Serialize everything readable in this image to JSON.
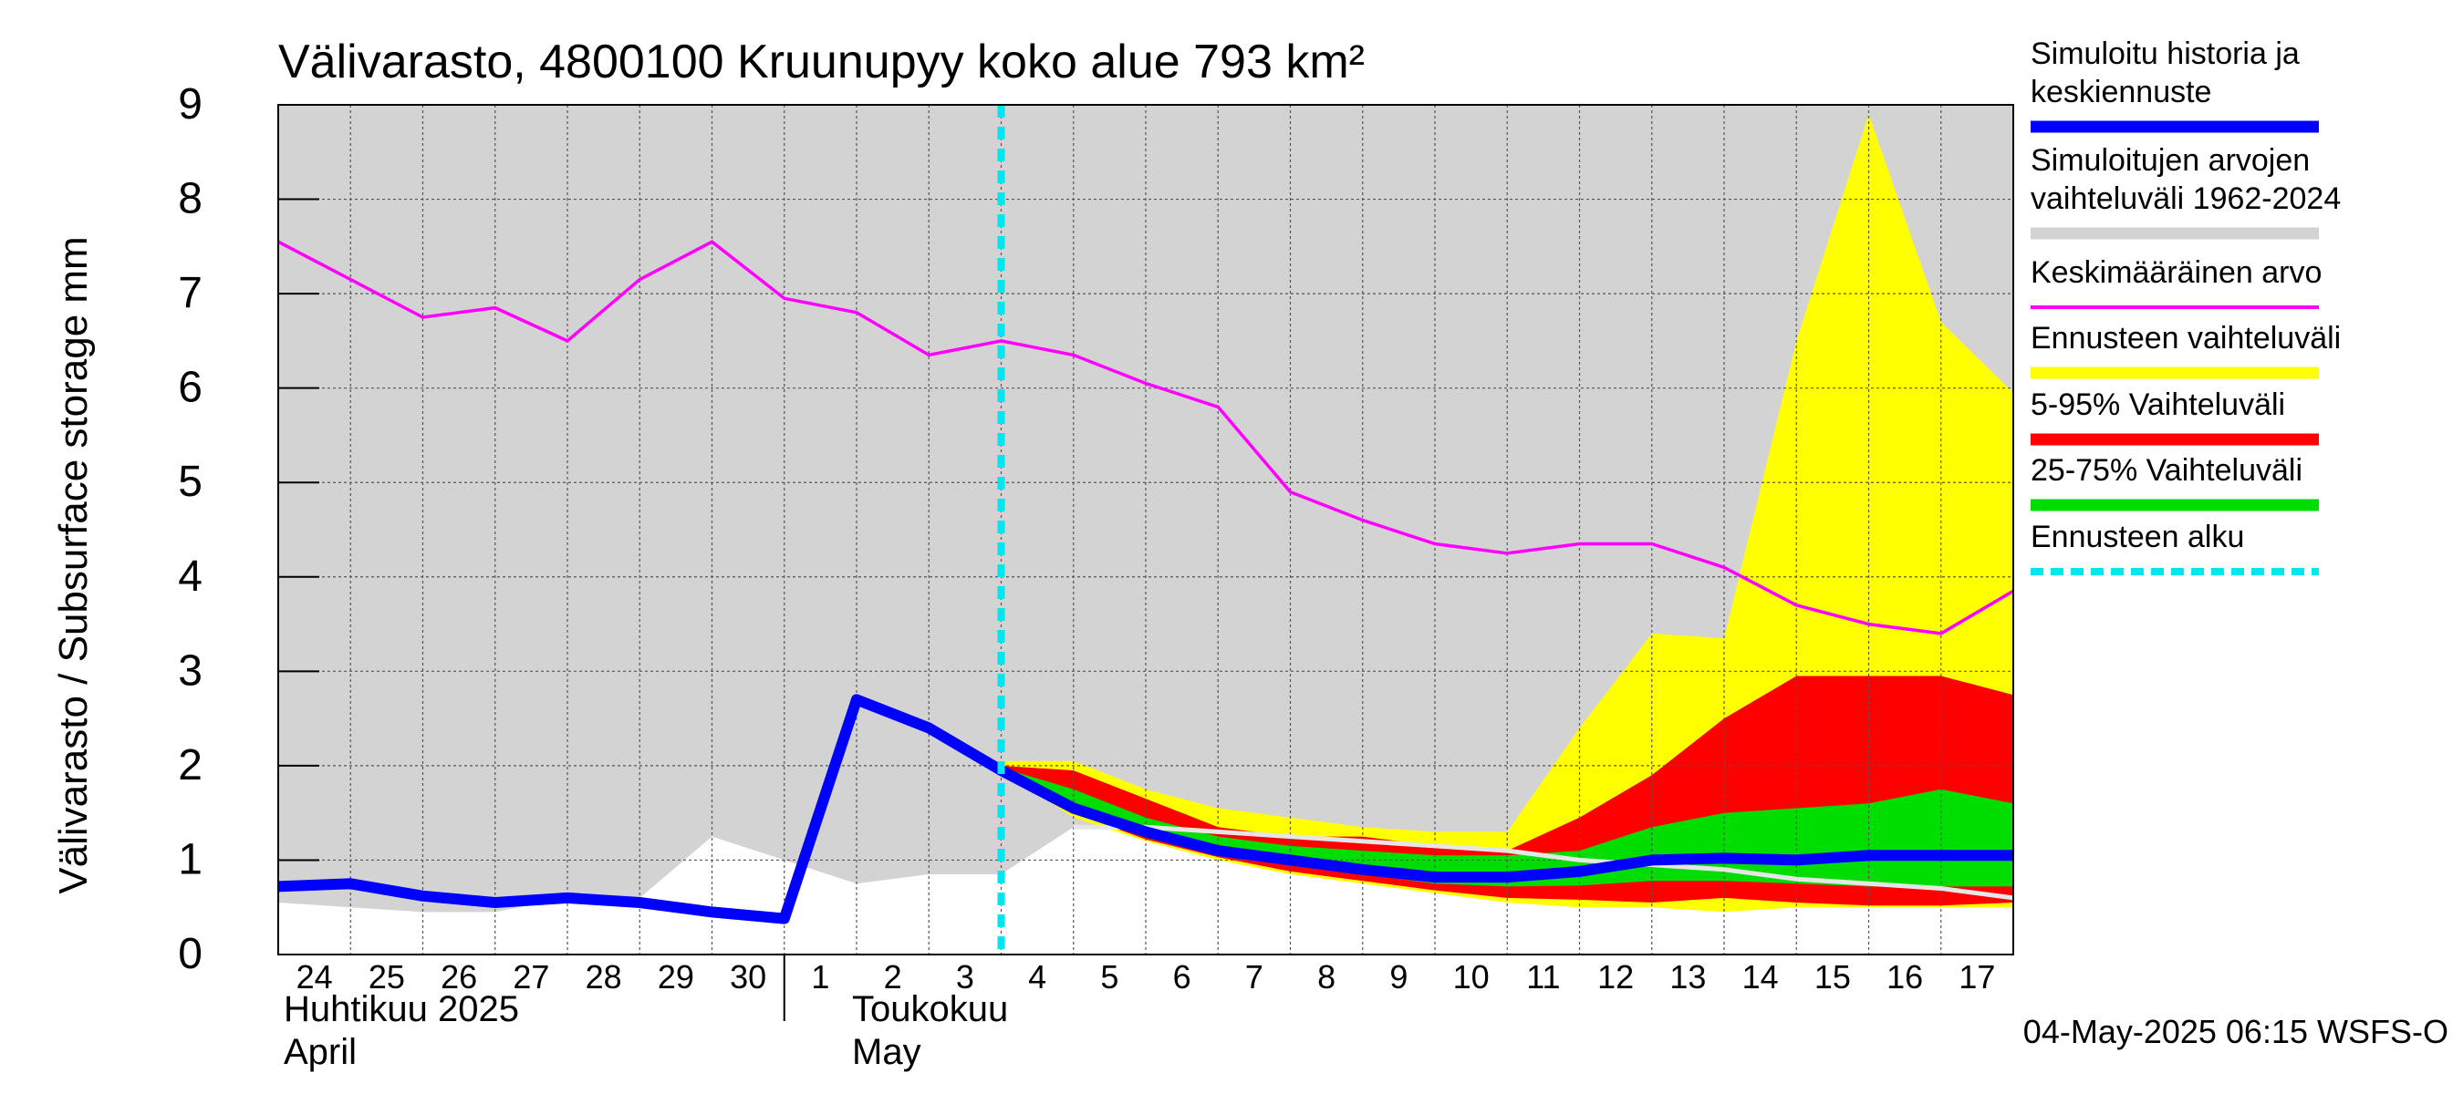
{
  "chart_data": {
    "type": "area",
    "title": "Välivarasto, 4800100 Kruunupyy koko alue 793 km²",
    "ylabel": "Välivarasto / Subsurface storage  mm",
    "ylim": [
      0,
      9
    ],
    "yticks": [
      "0",
      "1",
      "2",
      "3",
      "4",
      "5",
      "6",
      "7",
      "8",
      "9"
    ],
    "grid": true,
    "legend_position": "right",
    "x_day_labels": [
      "24",
      "25",
      "26",
      "27",
      "28",
      "29",
      "30",
      "1",
      "2",
      "3",
      "4",
      "5",
      "6",
      "7",
      "8",
      "9",
      "10",
      "11",
      "12",
      "13",
      "14",
      "15",
      "16",
      "17"
    ],
    "month_labels": [
      {
        "fi": "Huhtikuu  2025",
        "en": "April"
      },
      {
        "fi": "Toukokuu",
        "en": "May"
      }
    ],
    "footer": "04-May-2025 06:15 WSFS-O",
    "forecast_start": "2025-05-04",
    "x": [
      "2025-04-24",
      "2025-04-25",
      "2025-04-26",
      "2025-04-27",
      "2025-04-28",
      "2025-04-29",
      "2025-04-30",
      "2025-05-01",
      "2025-05-02",
      "2025-05-03",
      "2025-05-04",
      "2025-05-05",
      "2025-05-06",
      "2025-05-07",
      "2025-05-08",
      "2025-05-09",
      "2025-05-10",
      "2025-05-11",
      "2025-05-12",
      "2025-05-13",
      "2025-05-14",
      "2025-05-15",
      "2025-05-16",
      "2025-05-17",
      "2025-05-18"
    ],
    "series": [
      {
        "name": "Simuloitujen arvojen vaihteluväli 1962-2024",
        "color": "#d3d3d3",
        "lower": [
          0.55,
          0.5,
          0.45,
          0.45,
          0.6,
          0.6,
          1.25,
          1.0,
          0.75,
          0.85,
          0.85,
          1.35,
          1.3,
          1.35,
          1.3,
          1.25,
          1.2,
          1.15,
          1.05,
          0.95,
          0.9,
          0.85,
          0.8,
          0.75,
          0.7
        ],
        "upper": [
          9,
          9,
          9,
          9,
          9,
          9,
          9,
          9,
          9,
          9,
          9,
          9,
          9,
          9,
          9,
          9,
          9,
          9,
          9,
          9,
          9,
          9,
          9,
          9,
          9
        ]
      },
      {
        "name": "Keskimääräinen arvo",
        "color": "#ff00ff",
        "values": [
          7.55,
          7.15,
          6.75,
          6.85,
          6.5,
          7.15,
          7.55,
          6.95,
          6.8,
          6.35,
          6.5,
          6.35,
          6.05,
          5.8,
          4.9,
          4.6,
          4.35,
          4.25,
          4.35,
          4.35,
          4.1,
          3.7,
          3.5,
          3.4,
          3.85
        ]
      },
      {
        "name": "Ennusteen vaihteluväli",
        "color": "#ffff00",
        "lower": [
          null,
          null,
          null,
          null,
          null,
          null,
          null,
          null,
          null,
          null,
          1.95,
          1.45,
          1.2,
          1.0,
          0.85,
          0.75,
          0.65,
          0.55,
          0.5,
          0.5,
          0.45,
          0.5,
          0.5,
          0.5,
          0.5
        ],
        "upper": [
          null,
          null,
          null,
          null,
          null,
          null,
          null,
          null,
          null,
          null,
          2.05,
          2.05,
          1.75,
          1.55,
          1.45,
          1.35,
          1.3,
          1.3,
          2.4,
          3.4,
          3.35,
          6.5,
          8.9,
          6.7,
          5.95
        ]
      },
      {
        "name": "5-95% Vaihteluväli",
        "color": "#ff0000",
        "lower": [
          null,
          null,
          null,
          null,
          null,
          null,
          null,
          null,
          null,
          null,
          1.95,
          1.5,
          1.22,
          1.03,
          0.88,
          0.78,
          0.68,
          0.6,
          0.58,
          0.55,
          0.6,
          0.55,
          0.52,
          0.52,
          0.55
        ],
        "upper": [
          null,
          null,
          null,
          null,
          null,
          null,
          null,
          null,
          null,
          null,
          2.0,
          1.95,
          1.65,
          1.35,
          1.25,
          1.25,
          1.15,
          1.1,
          1.45,
          1.9,
          2.5,
          2.95,
          2.95,
          2.95,
          2.75
        ]
      },
      {
        "name": "25-75% Vaihteluväli",
        "color": "#00dd00",
        "lower": [
          null,
          null,
          null,
          null,
          null,
          null,
          null,
          null,
          null,
          null,
          1.95,
          1.55,
          1.3,
          1.1,
          0.95,
          0.85,
          0.75,
          0.72,
          0.73,
          0.78,
          0.78,
          0.75,
          0.72,
          0.72,
          0.72
        ],
        "upper": [
          null,
          null,
          null,
          null,
          null,
          null,
          null,
          null,
          null,
          null,
          1.98,
          1.75,
          1.45,
          1.25,
          1.15,
          1.1,
          1.05,
          1.05,
          1.1,
          1.35,
          1.5,
          1.55,
          1.6,
          1.75,
          1.6
        ]
      },
      {
        "name": "Simuloitu historia ja keskiennuste",
        "color": "#0000ff",
        "values": [
          0.72,
          0.75,
          0.62,
          0.55,
          0.6,
          0.55,
          0.45,
          0.38,
          2.7,
          2.4,
          1.95,
          1.55,
          1.3,
          1.1,
          1.0,
          0.9,
          0.82,
          0.82,
          0.88,
          1.0,
          1.02,
          1.0,
          1.05,
          1.05,
          1.05
        ]
      }
    ],
    "gray_upper_reference": {
      "color": "#e6e6e6",
      "values": [
        null,
        null,
        null,
        null,
        null,
        null,
        null,
        null,
        null,
        null,
        null,
        1.35,
        1.35,
        1.3,
        1.25,
        1.2,
        1.15,
        1.1,
        1.0,
        0.95,
        0.9,
        0.8,
        0.75,
        0.7,
        0.6
      ]
    },
    "legend": [
      {
        "label_lines": [
          "Simuloitu historia ja",
          "keskiennuste"
        ],
        "color": "#0000ff",
        "style": "thick"
      },
      {
        "label_lines": [
          "Simuloitujen arvojen",
          "vaihteluväli 1962-2024"
        ],
        "color": "#d3d3d3",
        "style": "thick"
      },
      {
        "label_lines": [
          "Keskimääräinen arvo"
        ],
        "color": "#ff00ff",
        "style": "thin"
      },
      {
        "label_lines": [
          "Ennusteen vaihteluväli"
        ],
        "color": "#ffff00",
        "style": "thick"
      },
      {
        "label_lines": [
          "5-95% Vaihteluväli"
        ],
        "color": "#ff0000",
        "style": "thick"
      },
      {
        "label_lines": [
          "25-75% Vaihteluväli"
        ],
        "color": "#00dd00",
        "style": "thick"
      },
      {
        "label_lines": [
          "Ennusteen alku"
        ],
        "color": "#00e5ee",
        "style": "dashed"
      }
    ]
  }
}
